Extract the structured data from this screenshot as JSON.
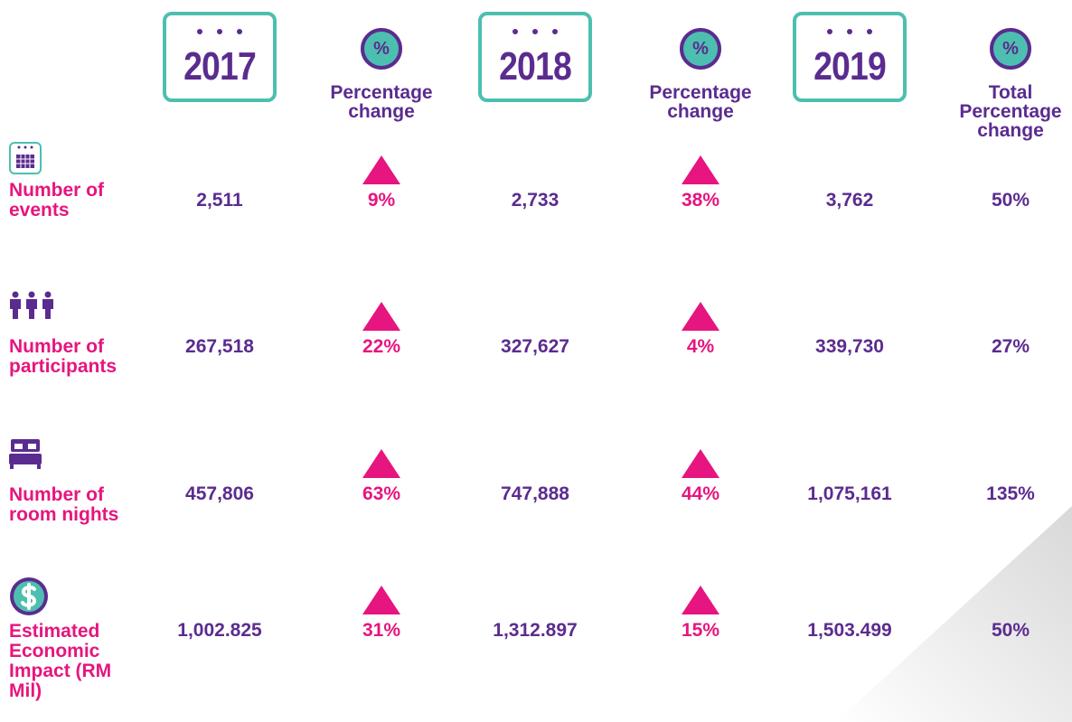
{
  "header": {
    "columns": [
      {
        "kind": "year",
        "text": "2017"
      },
      {
        "kind": "percent",
        "icon": "%",
        "text": "Percentage change"
      },
      {
        "kind": "year",
        "text": "2018"
      },
      {
        "kind": "percent",
        "icon": "%",
        "text": "Percentage change"
      },
      {
        "kind": "year",
        "text": "2019"
      },
      {
        "kind": "percent",
        "icon": "%",
        "text": "Total Percentage change"
      }
    ]
  },
  "rows": [
    {
      "label": "Number of events",
      "values": [
        "2,511",
        "9%",
        "2,733",
        "38%",
        "3,762",
        "50%"
      ]
    },
    {
      "label": "Number of participants",
      "values": [
        "267,518",
        "22%",
        "327,627",
        "4%",
        "339,730",
        "27%"
      ]
    },
    {
      "label": "Number of room nights",
      "values": [
        "457,806",
        "63%",
        "747,888",
        "44%",
        "1,075,161",
        "135%"
      ]
    },
    {
      "label": "Estimated Economic Impact (RM Mil)",
      "values": [
        "1,002.825",
        "31%",
        "1,312.897",
        "15%",
        "1,503.499",
        "50%"
      ]
    }
  ]
}
